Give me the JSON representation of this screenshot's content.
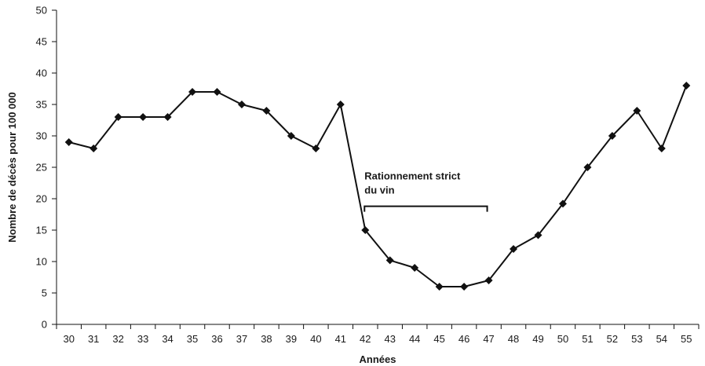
{
  "chart_data": {
    "type": "line",
    "title": "",
    "xlabel": "Années",
    "ylabel": "Nombre de décès pour 100 000",
    "ylim": [
      0,
      50
    ],
    "yticks": [
      "0",
      "5",
      "10",
      "15",
      "20",
      "25",
      "30",
      "35",
      "40",
      "45",
      "50"
    ],
    "grid": false,
    "categories": [
      "30",
      "31",
      "32",
      "33",
      "34",
      "35",
      "36",
      "37",
      "38",
      "39",
      "40",
      "41",
      "42",
      "43",
      "44",
      "45",
      "46",
      "47",
      "48",
      "49",
      "50",
      "51",
      "52",
      "53",
      "54",
      "55"
    ],
    "series": [
      {
        "values": [
          29,
          28,
          33,
          33,
          33,
          37,
          37,
          35,
          34,
          30,
          28,
          35,
          15,
          10.2,
          9,
          6,
          6,
          7,
          12,
          14.2,
          19.2,
          25,
          30,
          34,
          28,
          38
        ],
        "color": "#111111",
        "marker": "diamond"
      }
    ],
    "annotation": {
      "text_line1": "Rationnement strict",
      "text_line2": "du vin",
      "bracket_from": "42",
      "bracket_to": "47",
      "bracket_value": 18.8
    }
  }
}
